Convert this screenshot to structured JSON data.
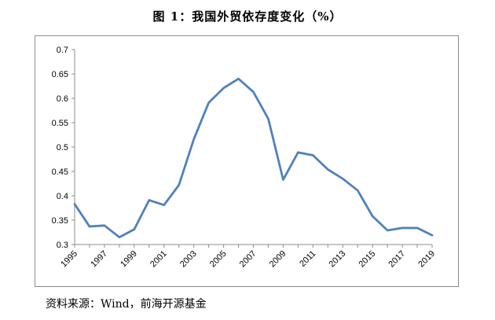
{
  "title": "图 1：我国外贸依存度变化（%）",
  "source": "资料来源：Wind，前海开源基金",
  "chart_data": {
    "type": "line",
    "title": "图 1：我国外贸依存度变化（%）",
    "xlabel": "",
    "ylabel": "",
    "x": [
      1995,
      1996,
      1997,
      1998,
      1999,
      2000,
      2001,
      2002,
      2003,
      2004,
      2005,
      2006,
      2007,
      2008,
      2009,
      2010,
      2011,
      2012,
      2013,
      2014,
      2015,
      2016,
      2017,
      2018,
      2019
    ],
    "series": [
      {
        "values": [
          0.383,
          0.337,
          0.339,
          0.315,
          0.331,
          0.391,
          0.381,
          0.422,
          0.516,
          0.591,
          0.621,
          0.64,
          0.613,
          0.558,
          0.433,
          0.489,
          0.483,
          0.454,
          0.435,
          0.411,
          0.358,
          0.329,
          0.334,
          0.334,
          0.319
        ]
      }
    ],
    "x_tick_labels": [
      "1995",
      "1997",
      "1999",
      "2001",
      "2003",
      "2005",
      "2007",
      "2009",
      "2011",
      "2013",
      "2015",
      "2017",
      "2019"
    ],
    "y_tick_labels": [
      "0.3",
      "0.35",
      "0.4",
      "0.45",
      "0.5",
      "0.55",
      "0.6",
      "0.65",
      "0.7"
    ],
    "ylim": [
      0.3,
      0.7
    ],
    "grid": false,
    "legend": "none",
    "line_color": "#4f81bd"
  }
}
